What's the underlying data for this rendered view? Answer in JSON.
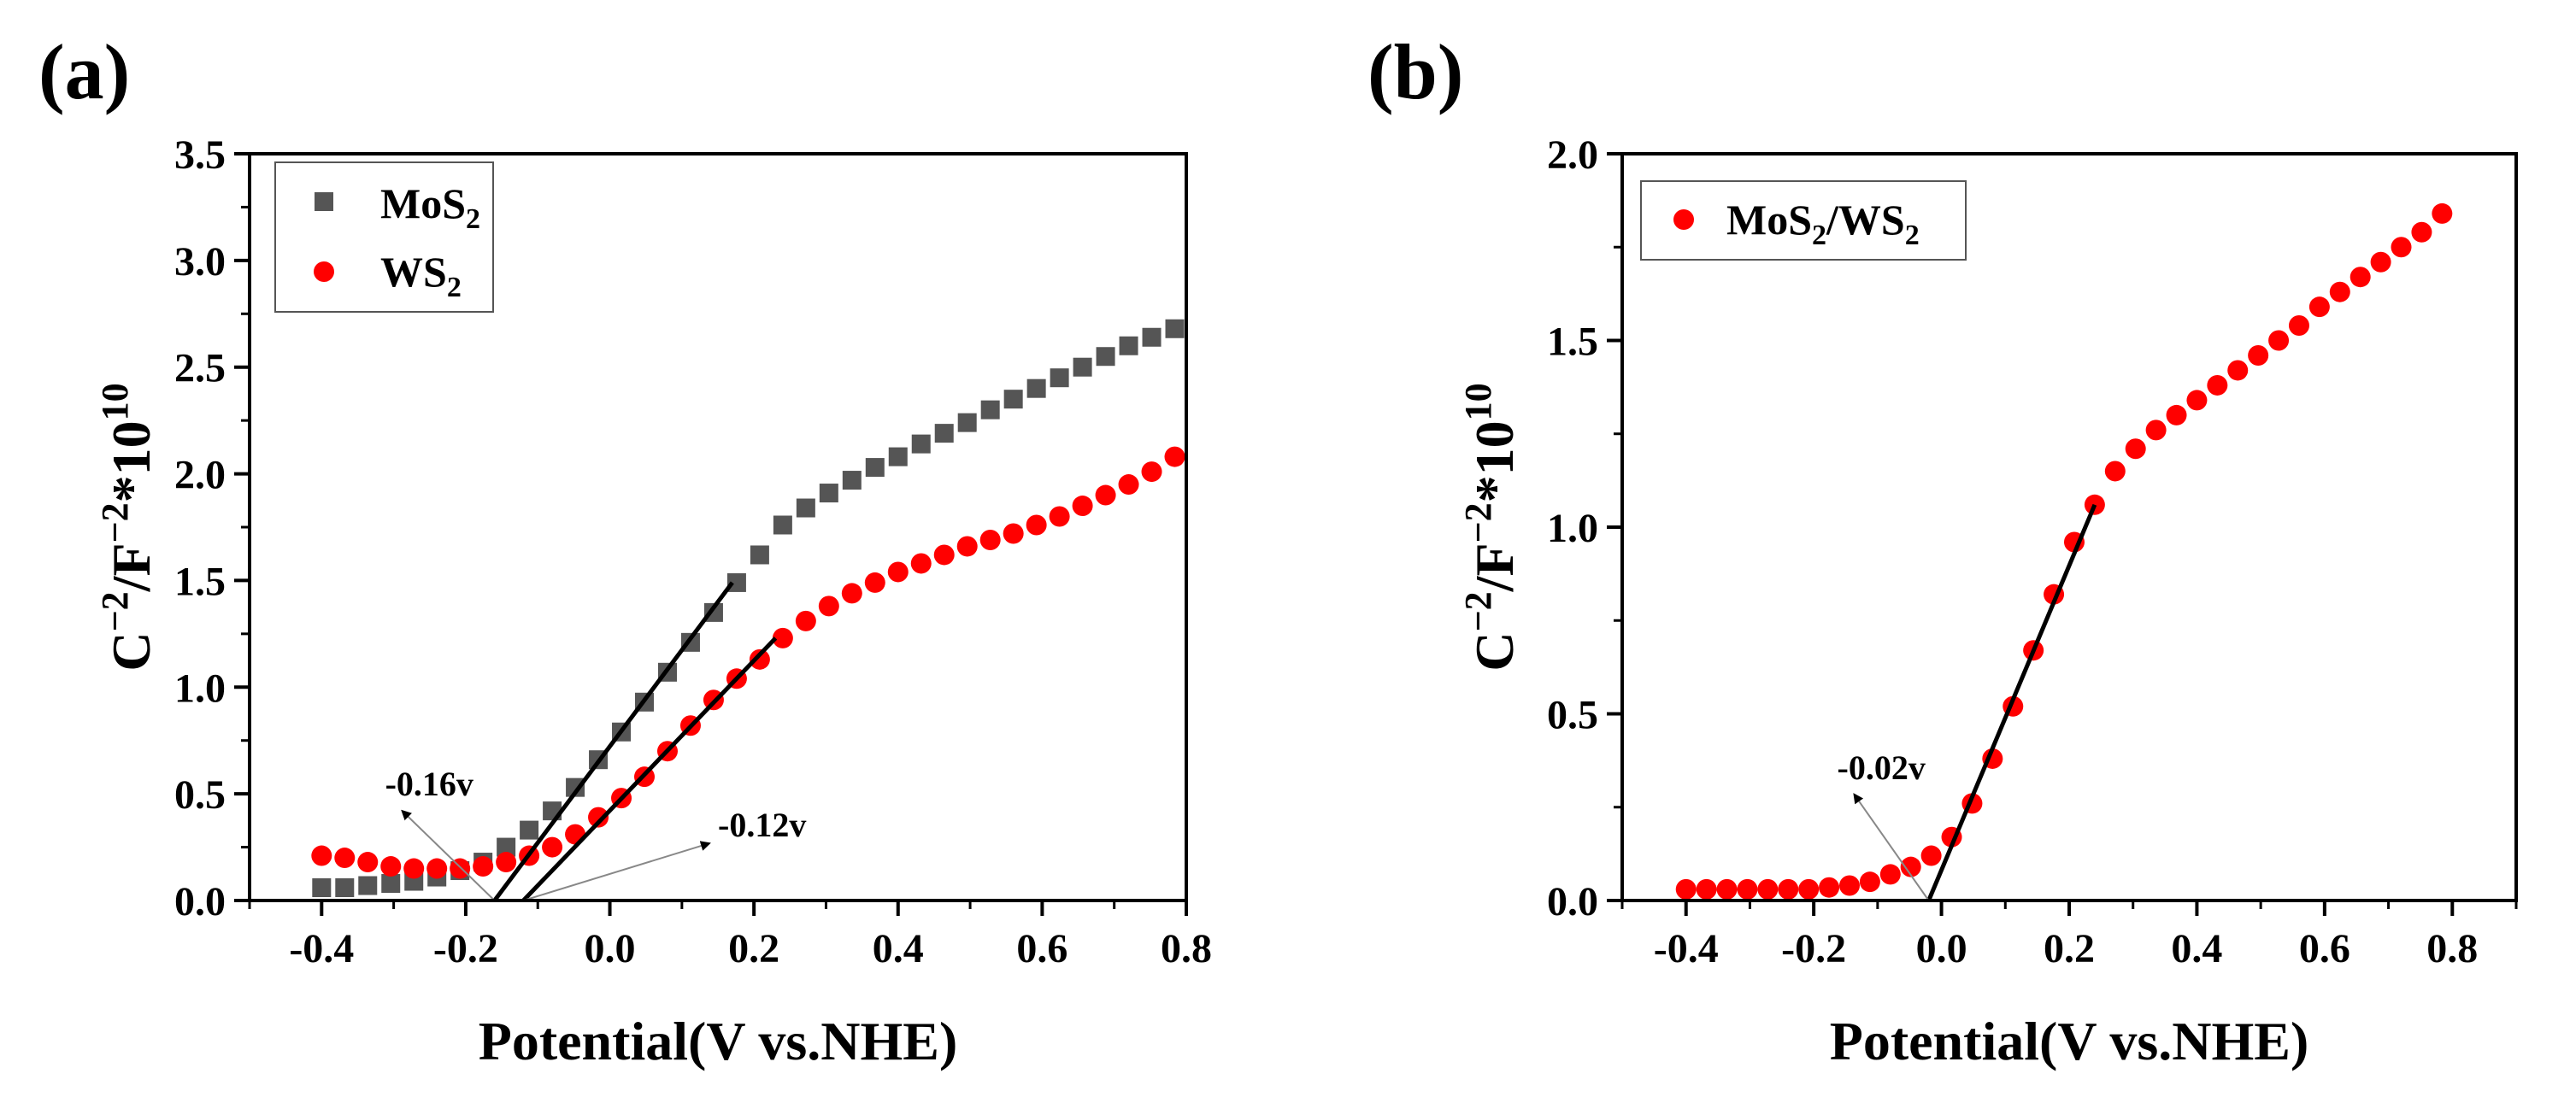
{
  "chart_data": [
    {
      "type": "scatter",
      "panel_label": "(a)",
      "xlabel": "Potential(V vs.NHE)",
      "ylabel": {
        "base": "C",
        "sup1": "−2",
        "mid": "/F",
        "sup2": "−2",
        "rest": "*10",
        "sup3": "10"
      },
      "xlim": [
        -0.5,
        0.8
      ],
      "ylim": [
        0,
        3.5
      ],
      "xticks": [
        -0.4,
        -0.2,
        0.0,
        0.2,
        0.4,
        0.6,
        0.8
      ],
      "xtick_labels": [
        "-0.4",
        "-0.2",
        "0.0",
        "0.2",
        "0.4",
        "0.6",
        "0.8"
      ],
      "yticks": [
        0,
        0.5,
        1.0,
        1.5,
        2.0,
        2.5,
        3.0,
        3.5
      ],
      "ytick_labels": [
        "0.0",
        "0.5",
        "1.0",
        "1.5",
        "2.0",
        "2.5",
        "3.0",
        "3.5"
      ],
      "legend_position": "top-left",
      "series": [
        {
          "name": "MoS2",
          "label_main": "MoS",
          "label_sub": "2",
          "marker": "square",
          "color": "#555555",
          "x": [
            -0.4,
            -0.368,
            -0.336,
            -0.304,
            -0.272,
            -0.24,
            -0.208,
            -0.176,
            -0.144,
            -0.112,
            -0.08,
            -0.048,
            -0.016,
            0.016,
            0.048,
            0.08,
            0.112,
            0.144,
            0.176,
            0.208,
            0.24,
            0.272,
            0.304,
            0.336,
            0.368,
            0.4,
            0.432,
            0.464,
            0.496,
            0.528,
            0.56,
            0.592,
            0.624,
            0.656,
            0.688,
            0.72,
            0.752,
            0.784
          ],
          "y": [
            0.06,
            0.06,
            0.07,
            0.08,
            0.09,
            0.11,
            0.14,
            0.18,
            0.25,
            0.33,
            0.42,
            0.53,
            0.66,
            0.79,
            0.93,
            1.07,
            1.21,
            1.35,
            1.49,
            1.62,
            1.76,
            1.84,
            1.91,
            1.97,
            2.03,
            2.08,
            2.14,
            2.19,
            2.24,
            2.3,
            2.35,
            2.4,
            2.45,
            2.5,
            2.55,
            2.6,
            2.64,
            2.68
          ]
        },
        {
          "name": "WS2",
          "label_main": "WS",
          "label_sub": "2",
          "marker": "circle",
          "color": "#ff0000",
          "x": [
            -0.4,
            -0.368,
            -0.336,
            -0.304,
            -0.272,
            -0.24,
            -0.208,
            -0.176,
            -0.144,
            -0.112,
            -0.08,
            -0.048,
            -0.016,
            0.016,
            0.048,
            0.08,
            0.112,
            0.144,
            0.176,
            0.208,
            0.24,
            0.272,
            0.304,
            0.336,
            0.368,
            0.4,
            0.432,
            0.464,
            0.496,
            0.528,
            0.56,
            0.592,
            0.624,
            0.656,
            0.688,
            0.72,
            0.752,
            0.784
          ],
          "y": [
            0.21,
            0.2,
            0.18,
            0.16,
            0.15,
            0.15,
            0.15,
            0.16,
            0.18,
            0.21,
            0.25,
            0.31,
            0.39,
            0.48,
            0.58,
            0.7,
            0.82,
            0.94,
            1.04,
            1.13,
            1.23,
            1.31,
            1.38,
            1.44,
            1.49,
            1.54,
            1.58,
            1.62,
            1.66,
            1.69,
            1.72,
            1.76,
            1.8,
            1.85,
            1.9,
            1.95,
            2.01,
            2.08
          ]
        }
      ],
      "fit_lines": [
        {
          "x": [
            -0.16,
            0.17
          ],
          "y": [
            0.0,
            1.49
          ]
        },
        {
          "x": [
            -0.12,
            0.23
          ],
          "y": [
            0.0,
            1.23
          ]
        }
      ],
      "annotations": [
        {
          "text": "-0.16v",
          "x": -0.16,
          "y": 0.0,
          "tx": -0.3,
          "ty": 0.5
        },
        {
          "text": "-0.12v",
          "x": -0.12,
          "y": 0.0,
          "tx": 0.15,
          "ty": 0.3
        }
      ]
    },
    {
      "type": "scatter",
      "panel_label": "(b)",
      "xlabel": "Potential(V vs.NHE)",
      "ylabel": {
        "base": "C",
        "sup1": "−2",
        "mid": "/F",
        "sup2": "−2",
        "rest": "*10",
        "sup3": "10"
      },
      "xlim": [
        -0.5,
        0.9
      ],
      "ylim": [
        0,
        2.0
      ],
      "xticks": [
        -0.4,
        -0.2,
        0.0,
        0.2,
        0.4,
        0.6,
        0.8
      ],
      "xtick_labels": [
        "-0.4",
        "-0.2",
        "0.0",
        "0.2",
        "0.4",
        "0.6",
        "0.8"
      ],
      "yticks": [
        0,
        0.5,
        1.0,
        1.5,
        2.0
      ],
      "ytick_labels": [
        "0.0",
        "0.5",
        "1.0",
        "1.5",
        "2.0"
      ],
      "legend_position": "top-left",
      "series": [
        {
          "name": "MoS2/WS2",
          "label_parts": [
            "MoS",
            "2",
            "/WS",
            "2"
          ],
          "marker": "circle",
          "color": "#ff0000",
          "x": [
            -0.4,
            -0.368,
            -0.336,
            -0.304,
            -0.272,
            -0.24,
            -0.208,
            -0.176,
            -0.144,
            -0.112,
            -0.08,
            -0.048,
            -0.016,
            0.016,
            0.048,
            0.08,
            0.112,
            0.144,
            0.176,
            0.208,
            0.24,
            0.272,
            0.304,
            0.336,
            0.368,
            0.4,
            0.432,
            0.464,
            0.496,
            0.528,
            0.56,
            0.592,
            0.624,
            0.656,
            0.688,
            0.72,
            0.752,
            0.784
          ],
          "y": [
            0.03,
            0.03,
            0.03,
            0.03,
            0.03,
            0.03,
            0.03,
            0.035,
            0.04,
            0.05,
            0.07,
            0.09,
            0.12,
            0.17,
            0.26,
            0.38,
            0.52,
            0.67,
            0.82,
            0.96,
            1.06,
            1.15,
            1.21,
            1.26,
            1.3,
            1.34,
            1.38,
            1.42,
            1.46,
            1.5,
            1.54,
            1.59,
            1.63,
            1.67,
            1.71,
            1.75,
            1.79,
            1.84
          ]
        }
      ],
      "fit_lines": [
        {
          "x": [
            -0.02,
            0.24
          ],
          "y": [
            0.0,
            1.06
          ]
        }
      ],
      "annotations": [
        {
          "text": "-0.02v",
          "x": -0.02,
          "y": 0.0,
          "tx": -0.15,
          "ty": 0.33
        }
      ]
    }
  ]
}
